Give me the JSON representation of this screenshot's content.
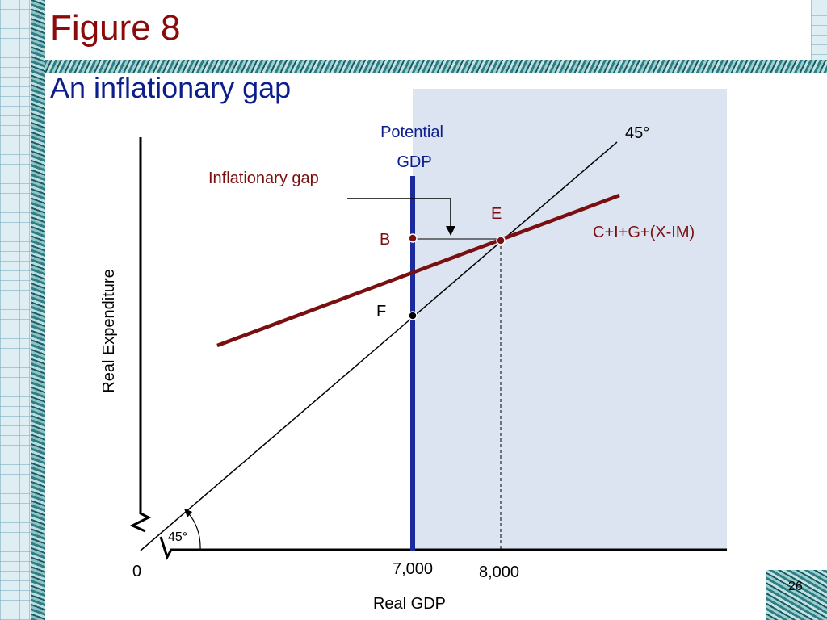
{
  "slide": {
    "figure_label": "Figure 8",
    "title": "An inflationary gap",
    "page_number": "26"
  },
  "diagram": {
    "potential_gdp_line1": "Potential",
    "potential_gdp_line2": "GDP",
    "forty_five_top": "45°",
    "forty_five_angle": "45°",
    "inflationary_gap": "Inflationary gap",
    "expenditure_label": "C+I+G+(X-IM)",
    "point_b": "B",
    "point_e": "E",
    "point_f": "F",
    "origin": "0",
    "x_tick_1": "7,000",
    "x_tick_2": "8,000",
    "x_axis_label": "Real GDP",
    "y_axis_label": "Real Expenditure"
  },
  "colors": {
    "title_red": "#8b0a0a",
    "title_blue": "#0b1e8c",
    "expenditure_line": "#7a0f0f",
    "potential_gdp_line": "#1b2a9c",
    "inflationary_region": "#dbe4f0"
  }
}
